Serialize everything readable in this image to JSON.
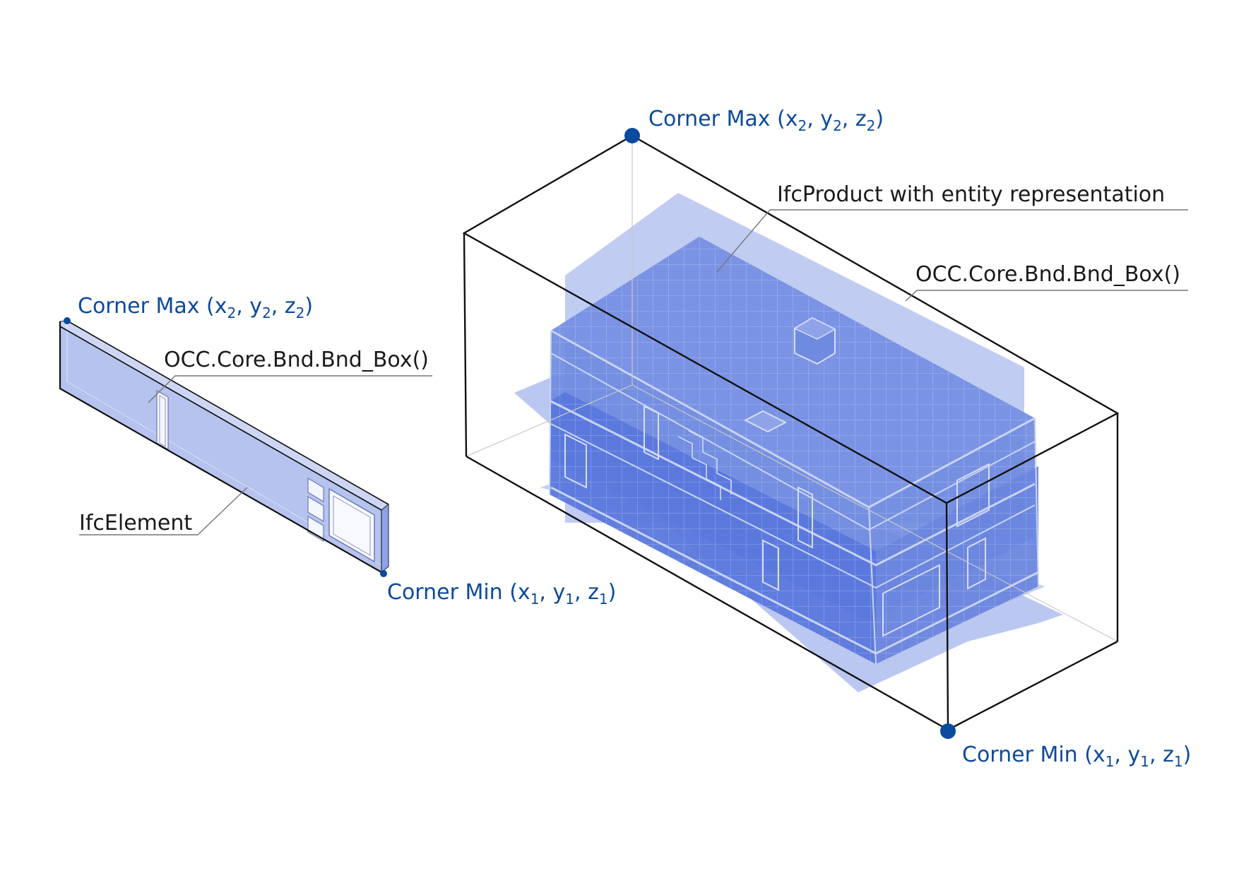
{
  "labels": {
    "left_corner_max": {
      "prefix": "Corner Max (",
      "v1": "x",
      "s1": "2",
      "v2": "y",
      "s2": "2",
      "v3": "z",
      "s3": "2",
      "suffix": ")"
    },
    "left_corner_min": {
      "prefix": "Corner Min (",
      "v1": "x",
      "s1": "1",
      "v2": "y",
      "s2": "1",
      "v3": "z",
      "s3": "1",
      "suffix": ")"
    },
    "left_bbox": "OCC.Core.Bnd.Bnd_Box()",
    "left_element": "IfcElement",
    "right_corner_max": {
      "prefix": "Corner Max (",
      "v1": "x",
      "s1": "2",
      "v2": "y",
      "s2": "2",
      "v3": "z",
      "s3": "2",
      "suffix": ")"
    },
    "right_corner_min": {
      "prefix": "Corner Min (",
      "v1": "x",
      "s1": "1",
      "v2": "y",
      "s2": "1",
      "v3": "z",
      "s3": "1",
      "suffix": ")"
    },
    "right_product": "IfcProduct with entity representation",
    "right_bbox": "OCC.Core.Bnd.Bnd_Box()"
  },
  "colors": {
    "label_blue": "#0d4a9a",
    "corner_dot": "#0b4a9e",
    "fill_light": "#b5c3ee",
    "fill_mid": "#6f8be0",
    "fill_dark": "#5a78dc",
    "box_stroke": "#111111"
  }
}
